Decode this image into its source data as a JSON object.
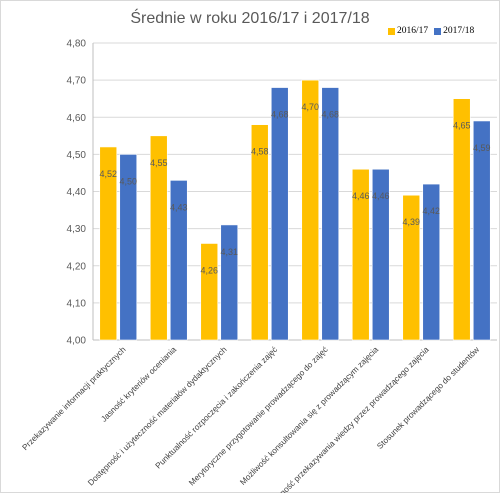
{
  "chart_data": {
    "type": "bar",
    "title": "Średnie  w roku 2016/17 i 2017/18",
    "categories": [
      "Przekazywanie informacji praktycznych",
      "Jasność kryteriów oceniania",
      "Dostępność i użyteczność materiałów dydaktycznych",
      "Punktualność rozpoczęcia i zakończenia zajęć",
      "Merytoryczne przygotowanie prowadzącego do zajęć",
      "Możliwość konsultowania się z prowadzącym zajęcia",
      "Umiejętność przekazywania wiedzy przez prowadzącego zajęcia",
      "Stosunek prowadzącego do studentów"
    ],
    "series": [
      {
        "name": "2016/17",
        "color": "#FFC000",
        "values": [
          4.52,
          4.55,
          4.26,
          4.58,
          4.7,
          4.46,
          4.39,
          4.65
        ],
        "labels": [
          "4,52",
          "4,55",
          "4,26",
          "4,58",
          "4,70",
          "4,46",
          "4,39",
          "4,65"
        ]
      },
      {
        "name": "2017/18",
        "color": "#4472C4",
        "values": [
          4.5,
          4.43,
          4.31,
          4.68,
          4.68,
          4.46,
          4.42,
          4.59
        ],
        "labels": [
          "4,50",
          "4,43",
          "4,31",
          "4,68",
          "4,68",
          "4,46",
          "4,42",
          "4,59"
        ]
      }
    ],
    "ylim": [
      4.0,
      4.8
    ],
    "yticks": [
      4.0,
      4.1,
      4.2,
      4.3,
      4.4,
      4.5,
      4.6,
      4.7,
      4.8
    ],
    "ytick_labels": [
      "4,00",
      "4,10",
      "4,20",
      "4,30",
      "4,40",
      "4,50",
      "4,60",
      "4,70",
      "4,80"
    ],
    "grid": true,
    "legend": "top-right"
  }
}
